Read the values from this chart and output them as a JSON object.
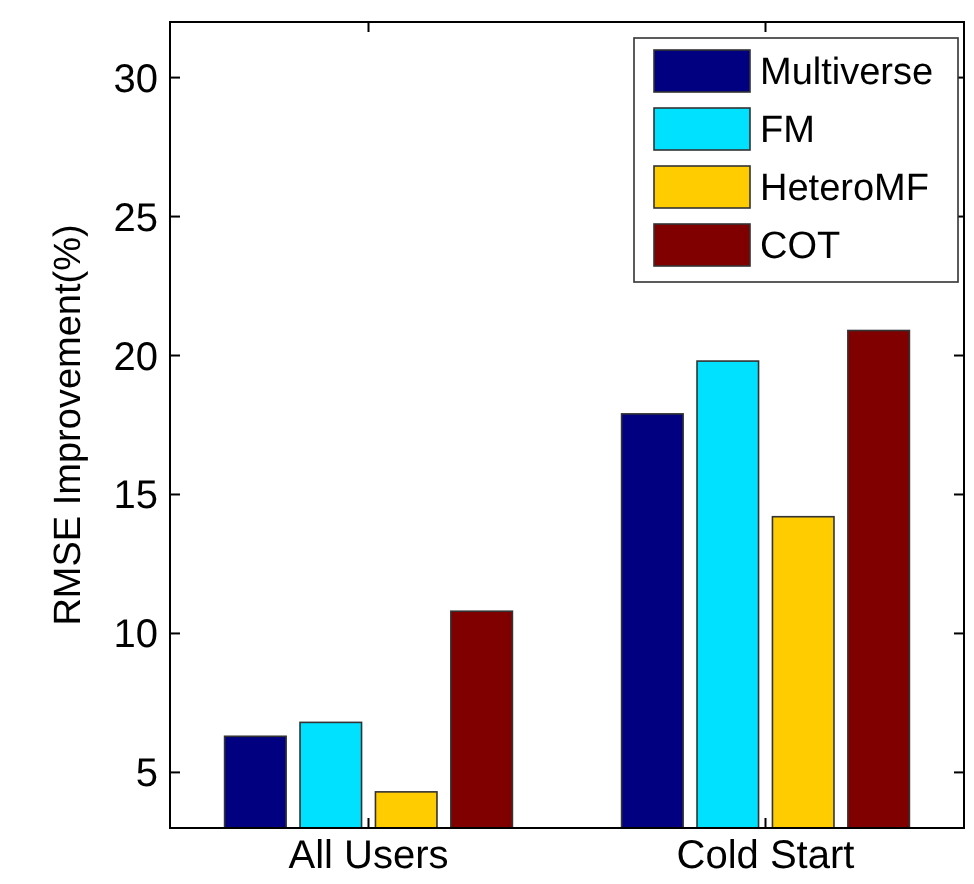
{
  "chart_data": {
    "type": "bar",
    "ylabel": "RMSE Improvement(%)",
    "categories": [
      "All Users",
      "Cold Start"
    ],
    "series": [
      {
        "name": "Multiverse",
        "color": "#000080",
        "values": [
          6.3,
          17.9
        ]
      },
      {
        "name": "FM",
        "color": "#00e0ff",
        "values": [
          6.8,
          19.8
        ]
      },
      {
        "name": "HeteroMF",
        "color": "#ffcc00",
        "values": [
          4.3,
          14.2
        ]
      },
      {
        "name": "COT",
        "color": "#800000",
        "values": [
          10.8,
          20.9
        ]
      }
    ],
    "ylim": [
      3,
      32
    ],
    "yticks": [
      5,
      10,
      15,
      20,
      25,
      30
    ],
    "legend": "top right"
  }
}
